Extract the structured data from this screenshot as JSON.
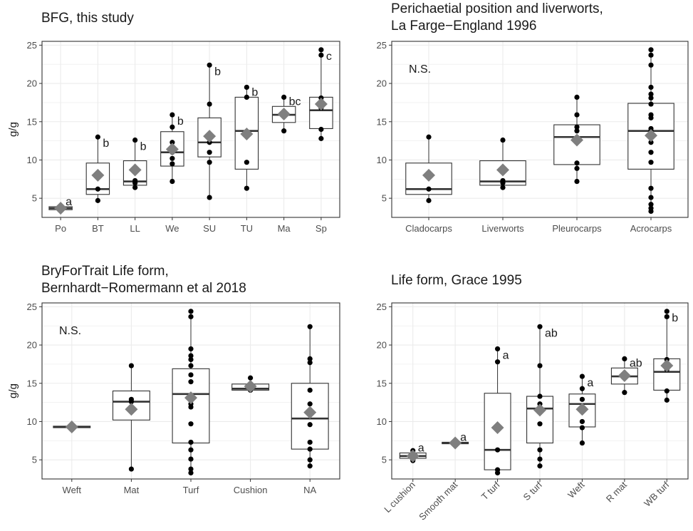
{
  "colors": {
    "box_stroke": "#333333",
    "point": "#000000",
    "mean_diamond": "#7f7f7f",
    "panel_border": "#333333",
    "grid": "#ebebeb"
  },
  "chart_data": [
    {
      "type": "box",
      "title": [
        "BFG, this study"
      ],
      "ylabel": "g/g",
      "ylim": [
        2.5,
        25.5
      ],
      "yticks": [
        5,
        10,
        15,
        20,
        25
      ],
      "grid": true,
      "categories": [
        "Po",
        "BT",
        "LL",
        "We",
        "SU",
        "TU",
        "Ma",
        "Sp"
      ],
      "boxes": [
        {
          "q1": 3.5,
          "median": 3.7,
          "q3": 3.9,
          "wlo": 3.4,
          "whi": 4.0,
          "mean": 3.7,
          "points": [
            3.5,
            3.7,
            3.9
          ],
          "label": "a"
        },
        {
          "q1": 5.5,
          "median": 6.2,
          "q3": 9.6,
          "wlo": 4.7,
          "whi": 13.0,
          "mean": 8.0,
          "points": [
            4.7,
            6.2,
            13.0
          ],
          "label": "b"
        },
        {
          "q1": 6.7,
          "median": 7.2,
          "q3": 9.9,
          "wlo": 6.3,
          "whi": 12.6,
          "mean": 8.7,
          "points": [
            6.4,
            7.0,
            7.3,
            12.6
          ],
          "label": "b"
        },
        {
          "q1": 9.2,
          "median": 11.0,
          "q3": 13.7,
          "wlo": 7.2,
          "whi": 15.9,
          "mean": 11.4,
          "points": [
            7.2,
            9.5,
            10.2,
            11.0,
            12.3,
            14.3,
            15.9
          ],
          "label": "b"
        },
        {
          "q1": 10.4,
          "median": 12.3,
          "q3": 15.5,
          "wlo": 5.1,
          "whi": 22.4,
          "mean": 13.1,
          "points": [
            5.1,
            9.7,
            11.0,
            12.3,
            13.3,
            17.3,
            22.4
          ],
          "label": "b"
        },
        {
          "q1": 8.8,
          "median": 13.8,
          "q3": 18.2,
          "wlo": 6.3,
          "whi": 19.5,
          "mean": 13.4,
          "points": [
            6.3,
            9.7,
            18.2,
            19.5
          ],
          "label": "b"
        },
        {
          "q1": 14.9,
          "median": 15.9,
          "q3": 17.0,
          "wlo": 13.8,
          "whi": 18.2,
          "mean": 16.0,
          "points": [
            13.8,
            15.9,
            18.2
          ],
          "label": "bc"
        },
        {
          "q1": 14.1,
          "median": 16.5,
          "q3": 18.2,
          "wlo": 12.8,
          "whi": 24.4,
          "mean": 17.3,
          "points": [
            12.8,
            14.0,
            16.8,
            18.1,
            23.7,
            24.4
          ],
          "label": "c"
        }
      ]
    },
    {
      "type": "box",
      "title": [
        "Perichaetial position and liverworts,",
        "La Farge−England 1996"
      ],
      "ylabel": "",
      "ylim": [
        2.5,
        25.5
      ],
      "yticks": [
        5,
        10,
        15,
        20,
        25
      ],
      "grid": true,
      "annotation": "N.S.",
      "categories": [
        "Cladocarps",
        "Liverworts",
        "Pleurocarps",
        "Acrocarps"
      ],
      "boxes": [
        {
          "q1": 5.5,
          "median": 6.2,
          "q3": 9.6,
          "wlo": 4.7,
          "whi": 13.0,
          "mean": 8.0,
          "points": [
            4.7,
            6.2,
            13.0
          ]
        },
        {
          "q1": 6.7,
          "median": 7.2,
          "q3": 9.9,
          "wlo": 6.3,
          "whi": 12.6,
          "mean": 8.7,
          "points": [
            6.4,
            7.0,
            7.3,
            12.6
          ]
        },
        {
          "q1": 9.4,
          "median": 13.0,
          "q3": 14.6,
          "wlo": 7.2,
          "whi": 18.2,
          "mean": 12.6,
          "points": [
            7.2,
            8.9,
            9.6,
            12.3,
            13.8,
            14.3,
            15.9,
            18.2
          ]
        },
        {
          "q1": 8.8,
          "median": 13.8,
          "q3": 17.4,
          "wlo": 3.3,
          "whi": 24.4,
          "mean": 13.2,
          "points": [
            3.3,
            3.7,
            4.2,
            5.1,
            6.3,
            9.7,
            11.0,
            12.3,
            13.0,
            13.8,
            14.1,
            15.5,
            15.9,
            17.3,
            18.1,
            18.6,
            19.5,
            22.4,
            23.7,
            24.4
          ]
        }
      ]
    },
    {
      "type": "box",
      "title": [
        "BryForTrait Life form,",
        "Bernhardt−Romermann et al 2018"
      ],
      "ylabel": "g/g",
      "ylim": [
        2.5,
        25.5
      ],
      "yticks": [
        5,
        10,
        15,
        20,
        25
      ],
      "grid": true,
      "annotation": "N.S.",
      "categories": [
        "Weft",
        "Mat",
        "Turf",
        "Cushion",
        "NA"
      ],
      "boxes": [
        {
          "q1": 9.2,
          "median": 9.3,
          "q3": 9.4,
          "wlo": 9.2,
          "whi": 9.4,
          "mean": 9.3,
          "points": [
            9.3
          ]
        },
        {
          "q1": 10.2,
          "median": 12.6,
          "q3": 14.0,
          "wlo": 3.8,
          "whi": 17.3,
          "mean": 11.6,
          "points": [
            3.8,
            12.6,
            12.9,
            17.3
          ]
        },
        {
          "q1": 7.2,
          "median": 13.6,
          "q3": 16.9,
          "wlo": 3.3,
          "whi": 24.4,
          "mean": 13.1,
          "points": [
            3.3,
            3.8,
            5.1,
            6.3,
            7.3,
            9.7,
            11.9,
            12.3,
            13.0,
            15.2,
            16.1,
            17.3,
            18.1,
            18.6,
            19.5,
            23.7,
            24.4
          ]
        },
        {
          "q1": 14.1,
          "median": 14.3,
          "q3": 14.9,
          "wlo": 14.0,
          "whi": 15.7,
          "mean": 14.6,
          "points": [
            14.1,
            14.6,
            15.7
          ]
        },
        {
          "q1": 6.4,
          "median": 10.4,
          "q3": 15.0,
          "wlo": 4.2,
          "whi": 22.4,
          "mean": 11.2,
          "points": [
            4.2,
            5.0,
            6.4,
            7.3,
            9.6,
            12.3,
            14.1,
            17.7,
            18.2,
            22.4
          ]
        }
      ]
    },
    {
      "type": "box",
      "title": [
        "Life form, Grace 1995"
      ],
      "ylabel": "",
      "ylim": [
        2.5,
        25.5
      ],
      "yticks": [
        5,
        10,
        15,
        20,
        25
      ],
      "grid": true,
      "rotate_x_labels": true,
      "categories": [
        "L cushion",
        "Smooth mat",
        "T turf",
        "S turf",
        "Weft",
        "R mat",
        "WB turf"
      ],
      "boxes": [
        {
          "q1": 5.2,
          "median": 5.5,
          "q3": 5.9,
          "wlo": 4.9,
          "whi": 6.2,
          "mean": 5.5,
          "points": [
            4.9,
            5.5,
            6.2
          ],
          "label": "a"
        },
        {
          "q1": 7.1,
          "median": 7.2,
          "q3": 7.3,
          "wlo": 7.1,
          "whi": 7.3,
          "mean": 7.2,
          "points": [
            7.2
          ],
          "label": "a"
        },
        {
          "q1": 3.7,
          "median": 6.3,
          "q3": 13.7,
          "wlo": 3.3,
          "whi": 19.5,
          "mean": 9.2,
          "points": [
            3.3,
            3.7,
            6.3,
            17.8,
            19.5
          ],
          "label": "a"
        },
        {
          "q1": 7.2,
          "median": 11.7,
          "q3": 13.3,
          "wlo": 4.2,
          "whi": 22.4,
          "mean": 11.5,
          "points": [
            4.2,
            5.1,
            6.3,
            9.7,
            12.3,
            13.3,
            17.3,
            22.4
          ],
          "label": "ab"
        },
        {
          "q1": 9.3,
          "median": 12.3,
          "q3": 13.6,
          "wlo": 7.2,
          "whi": 15.9,
          "mean": 11.6,
          "points": [
            7.2,
            9.2,
            10.0,
            12.9,
            14.3,
            15.9
          ],
          "label": "a"
        },
        {
          "q1": 14.9,
          "median": 15.9,
          "q3": 17.0,
          "wlo": 13.8,
          "whi": 18.2,
          "mean": 16.0,
          "points": [
            13.8,
            15.9,
            18.2
          ],
          "label": "ab"
        },
        {
          "q1": 14.1,
          "median": 16.5,
          "q3": 18.2,
          "wlo": 12.8,
          "whi": 24.4,
          "mean": 17.3,
          "points": [
            12.8,
            14.0,
            16.8,
            18.1,
            23.7,
            24.4
          ],
          "label": "b"
        }
      ]
    }
  ]
}
